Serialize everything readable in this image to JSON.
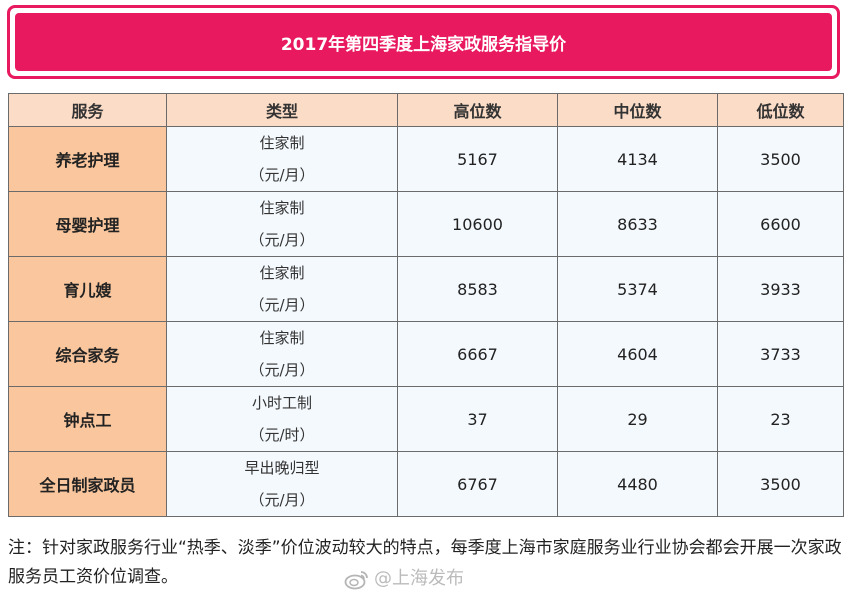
{
  "title": "2017年第四季度上海家政服务指导价",
  "table": {
    "headers": [
      "服务",
      "类型",
      "高位数",
      "中位数",
      "低位数"
    ],
    "rows": [
      {
        "service": "养老护理",
        "type_line1": "住家制",
        "type_line2": "（元/月）",
        "high": "5167",
        "median": "4134",
        "low": "3500"
      },
      {
        "service": "母婴护理",
        "type_line1": "住家制",
        "type_line2": "（元/月）",
        "high": "10600",
        "median": "8633",
        "low": "6600"
      },
      {
        "service": "育儿嫂",
        "type_line1": "住家制",
        "type_line2": "（元/月）",
        "high": "8583",
        "median": "5374",
        "low": "3933"
      },
      {
        "service": "综合家务",
        "type_line1": "住家制",
        "type_line2": "（元/月）",
        "high": "6667",
        "median": "4604",
        "low": "3733"
      },
      {
        "service": "钟点工",
        "type_line1": "小时工制",
        "type_line2": "（元/时）",
        "high": "37",
        "median": "29",
        "low": "23"
      },
      {
        "service": "全日制家政员",
        "type_line1": "早出晚归型",
        "type_line2": "（元/月）",
        "high": "6767",
        "median": "4480",
        "low": "3500"
      }
    ]
  },
  "note": "注：针对家政服务行业“热季、淡季”价位波动较大的特点，每季度上海市家庭服务业行业协会都会开展一次家政服务员工资价位调查。",
  "watermark": {
    "icon": "weibo-icon",
    "text": "@上海发布"
  },
  "colors": {
    "title_bg": "#e8195f",
    "header_bg": "#fbdcc7",
    "service_bg": "#f9c69d",
    "cell_bg": "#f4f9fd"
  }
}
